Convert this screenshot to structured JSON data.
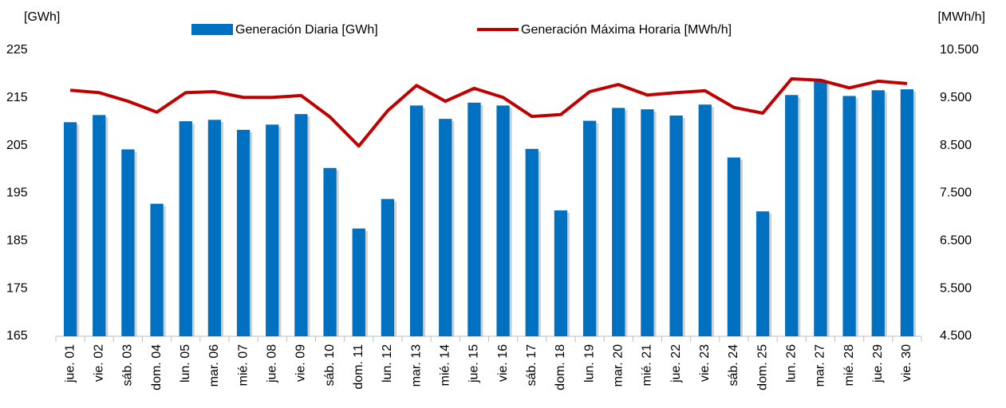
{
  "chart_data": {
    "type": "bar",
    "y_label": "[GWh]",
    "y2_label": "[MWh/h]",
    "legend": "top",
    "grid": false,
    "categories": [
      "jue. 01",
      "vie. 02",
      "sáb. 03",
      "dom. 04",
      "lun. 05",
      "mar. 06",
      "mié. 07",
      "jue. 08",
      "vie. 09",
      "sáb. 10",
      "dom. 11",
      "lun. 12",
      "mar. 13",
      "mié. 14",
      "jue. 15",
      "vie. 16",
      "sáb. 17",
      "dom. 18",
      "lun. 19",
      "mar. 20",
      "mié. 21",
      "jue. 22",
      "vie. 23",
      "sáb. 24",
      "dom. 25",
      "lun. 26",
      "mar. 27",
      "mié. 28",
      "jue. 29",
      "vie. 30"
    ],
    "series": [
      {
        "name": "Generación Diaria [GWh]",
        "type": "bar",
        "color": "#0070c0",
        "values": [
          209.9,
          211.4,
          204.2,
          192.8,
          210.1,
          210.4,
          208.3,
          209.4,
          211.6,
          200.3,
          187.6,
          193.8,
          213.4,
          210.6,
          214.0,
          213.4,
          204.3,
          191.4,
          210.2,
          212.9,
          212.6,
          211.3,
          213.6,
          202.5,
          191.2,
          215.6,
          218.6,
          215.4,
          216.6,
          216.8
        ]
      },
      {
        "name": "Generación Máxima Horaria [MWh/h]",
        "type": "line",
        "axis": "y2",
        "color": "#c00000",
        "values": [
          9660,
          9610,
          9430,
          9200,
          9610,
          9630,
          9510,
          9510,
          9550,
          9100,
          8490,
          9230,
          9760,
          9430,
          9700,
          9510,
          9110,
          9150,
          9630,
          9780,
          9560,
          9610,
          9650,
          9300,
          9180,
          9900,
          9870,
          9710,
          9850,
          9800
        ]
      }
    ],
    "ylim": [
      165,
      225
    ],
    "yticks": [
      165,
      175,
      185,
      195,
      205,
      215,
      225
    ],
    "y2lim": [
      4500,
      10500
    ],
    "y2ticks": [
      {
        "value": 4500,
        "label": "4.500"
      },
      {
        "value": 5500,
        "label": "5.500"
      },
      {
        "value": 6500,
        "label": "6.500"
      },
      {
        "value": 7500,
        "label": "7.500"
      },
      {
        "value": 8500,
        "label": "8.500"
      },
      {
        "value": 9500,
        "label": "9.500"
      },
      {
        "value": 10500,
        "label": "10.500"
      }
    ]
  }
}
